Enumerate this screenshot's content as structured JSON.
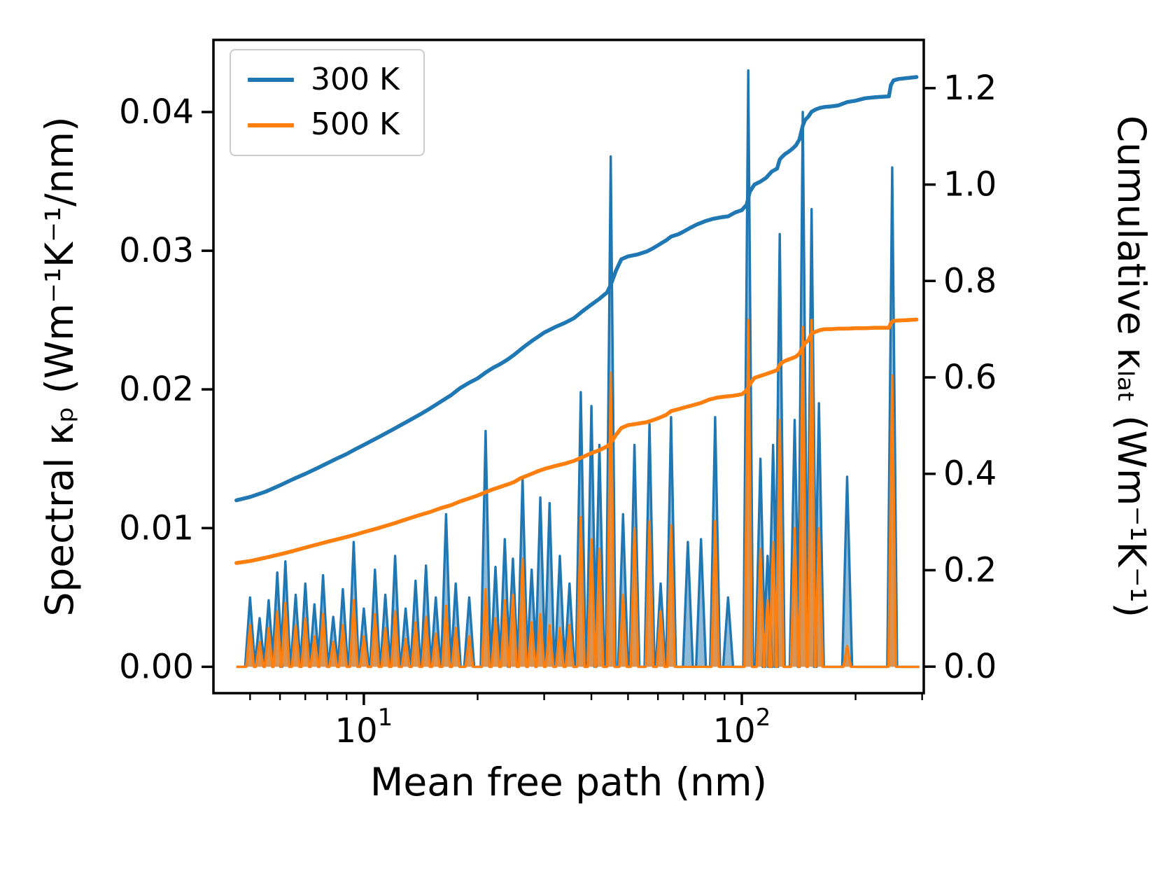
{
  "legend": {
    "items": [
      {
        "label": "300 K",
        "color": "#1f77b4"
      },
      {
        "label": "500 K",
        "color": "#ff7f0e"
      }
    ]
  },
  "chart_data": {
    "type": "area+line",
    "title": "",
    "xlabel": "Mean free path (nm)",
    "x_axis": {
      "scale": "log",
      "xlim": [
        4.0,
        303
      ],
      "major_ticks": [
        {
          "value": 10,
          "base": "10",
          "exp": "1"
        },
        {
          "value": 100,
          "base": "10",
          "exp": "2"
        }
      ],
      "minor_ticks": [
        5,
        6,
        7,
        8,
        9,
        20,
        30,
        40,
        50,
        60,
        70,
        80,
        90,
        200,
        300
      ]
    },
    "left_axis": {
      "label": "Spectral κₚ (Wm⁻¹K⁻¹/nm)",
      "ylim": [
        -0.0019,
        0.0452
      ],
      "ticks": [
        {
          "value": 0.0,
          "label": "0.00"
        },
        {
          "value": 0.01,
          "label": "0.01"
        },
        {
          "value": 0.02,
          "label": "0.02"
        },
        {
          "value": 0.03,
          "label": "0.03"
        },
        {
          "value": 0.04,
          "label": "0.04"
        }
      ]
    },
    "right_axis": {
      "label": "Cumulative κₗₐₜ (Wm⁻¹K⁻¹)",
      "ylim": [
        -0.055,
        1.3
      ],
      "ticks": [
        {
          "value": 0.0,
          "label": "0.0"
        },
        {
          "value": 0.2,
          "label": "0.2"
        },
        {
          "value": 0.4,
          "label": "0.4"
        },
        {
          "value": 0.6,
          "label": "0.6"
        },
        {
          "value": 0.8,
          "label": "0.8"
        },
        {
          "value": 1.0,
          "label": "1.0"
        },
        {
          "value": 1.2,
          "label": "1.2"
        }
      ]
    },
    "series_labels": [
      "300 K",
      "500 K"
    ],
    "colors": {
      "s300": "#1f77b4",
      "s500": "#ff7f0e"
    },
    "fill_alpha": {
      "s300": 0.5,
      "s500": 0.65
    },
    "spike_half_width_decades": {
      "s300": 0.013,
      "s500": 0.01
    },
    "spectral_peaks": {
      "columns": [
        "mfp_nm",
        "kp_300K",
        "kp_500K"
      ],
      "rows": [
        [
          5.0,
          0.005,
          0.003
        ],
        [
          5.3,
          0.0035,
          0.0018
        ],
        [
          5.6,
          0.0048,
          0.0028
        ],
        [
          5.9,
          0.0068,
          0.004
        ],
        [
          6.2,
          0.0076,
          0.0046
        ],
        [
          6.6,
          0.0052,
          0.003
        ],
        [
          7.0,
          0.006,
          0.0035
        ],
        [
          7.4,
          0.0045,
          0.0022
        ],
        [
          7.8,
          0.0066,
          0.0038
        ],
        [
          8.3,
          0.0036,
          0.0018
        ],
        [
          8.8,
          0.0056,
          0.003
        ],
        [
          9.4,
          0.009,
          0.0048
        ],
        [
          10.0,
          0.0042,
          0.0022
        ],
        [
          10.7,
          0.007,
          0.0038
        ],
        [
          11.4,
          0.0052,
          0.0028
        ],
        [
          12.1,
          0.008,
          0.004
        ],
        [
          12.9,
          0.0042,
          0.002
        ],
        [
          13.7,
          0.0062,
          0.0032
        ],
        [
          14.6,
          0.0073,
          0.0036
        ],
        [
          15.5,
          0.005,
          0.0024
        ],
        [
          16.5,
          0.011,
          0.0044
        ],
        [
          17.5,
          0.006,
          0.0028
        ],
        [
          19.0,
          0.005,
          0.0022
        ],
        [
          21.0,
          0.017,
          0.0056
        ],
        [
          22.3,
          0.0072,
          0.0035
        ],
        [
          23.6,
          0.0092,
          0.0048
        ],
        [
          24.8,
          0.0078,
          0.0052
        ],
        [
          26.3,
          0.0136,
          0.0078
        ],
        [
          27.8,
          0.007,
          0.0032
        ],
        [
          29.3,
          0.0122,
          0.0038
        ],
        [
          31.0,
          0.0118,
          0.003
        ],
        [
          33.0,
          0.008,
          0.0028
        ],
        [
          35.0,
          0.006,
          0.003
        ],
        [
          37.5,
          0.0198,
          0.0108
        ],
        [
          40.0,
          0.0188,
          0.0092
        ],
        [
          42.0,
          0.016,
          0.0085
        ],
        [
          45.0,
          0.0368,
          0.0212
        ],
        [
          48.5,
          0.011,
          0.0052
        ],
        [
          52.0,
          0.016,
          0.01
        ],
        [
          57.0,
          0.0175,
          0.0105
        ],
        [
          61.0,
          0.006,
          0.004
        ],
        [
          65.0,
          0.018,
          0.0102
        ],
        [
          72.0,
          0.009,
          0.0
        ],
        [
          78.0,
          0.0092,
          0.0
        ],
        [
          85.0,
          0.018,
          0.0105
        ],
        [
          92.0,
          0.005,
          0.0
        ],
        [
          104.0,
          0.043,
          0.025
        ],
        [
          112.0,
          0.015,
          0.0085
        ],
        [
          117.0,
          0.008,
          0.0048
        ],
        [
          121.0,
          0.016,
          0.009
        ],
        [
          126.0,
          0.0312,
          0.0178
        ],
        [
          138.0,
          0.0178,
          0.01
        ],
        [
          145.0,
          0.04,
          0.0245
        ],
        [
          153.0,
          0.033,
          0.025
        ],
        [
          160.0,
          0.019,
          0.01
        ],
        [
          190.0,
          0.0137,
          0.0015
        ],
        [
          250.0,
          0.036,
          0.021
        ]
      ]
    },
    "cumulative_300K": [
      [
        4.6,
        0.345
      ],
      [
        5.0,
        0.352
      ],
      [
        5.5,
        0.363
      ],
      [
        6.0,
        0.376
      ],
      [
        6.5,
        0.389
      ],
      [
        7.0,
        0.4
      ],
      [
        7.5,
        0.411
      ],
      [
        8.0,
        0.422
      ],
      [
        8.5,
        0.432
      ],
      [
        9.0,
        0.441
      ],
      [
        9.5,
        0.451
      ],
      [
        10.0,
        0.46
      ],
      [
        11.0,
        0.477
      ],
      [
        12.0,
        0.493
      ],
      [
        13.0,
        0.508
      ],
      [
        14.0,
        0.522
      ],
      [
        15.0,
        0.536
      ],
      [
        16.0,
        0.55
      ],
      [
        17.0,
        0.563
      ],
      [
        18.0,
        0.578
      ],
      [
        19.0,
        0.589
      ],
      [
        20.0,
        0.598
      ],
      [
        21.0,
        0.61
      ],
      [
        22.0,
        0.62
      ],
      [
        23.0,
        0.628
      ],
      [
        24.0,
        0.637
      ],
      [
        25.0,
        0.647
      ],
      [
        26.0,
        0.658
      ],
      [
        27.0,
        0.668
      ],
      [
        28.0,
        0.677
      ],
      [
        29.0,
        0.685
      ],
      [
        30.0,
        0.693
      ],
      [
        32.0,
        0.704
      ],
      [
        34.0,
        0.713
      ],
      [
        36.0,
        0.723
      ],
      [
        38.0,
        0.738
      ],
      [
        40.0,
        0.751
      ],
      [
        42.0,
        0.763
      ],
      [
        44.0,
        0.776
      ],
      [
        45.0,
        0.792
      ],
      [
        46.5,
        0.822
      ],
      [
        48.0,
        0.845
      ],
      [
        50.0,
        0.851
      ],
      [
        53.0,
        0.855
      ],
      [
        56.0,
        0.861
      ],
      [
        58.0,
        0.867
      ],
      [
        60.0,
        0.874
      ],
      [
        63.0,
        0.884
      ],
      [
        65.0,
        0.892
      ],
      [
        68.0,
        0.897
      ],
      [
        70.0,
        0.902
      ],
      [
        73.0,
        0.91
      ],
      [
        76.0,
        0.917
      ],
      [
        80.0,
        0.924
      ],
      [
        84.0,
        0.929
      ],
      [
        88.0,
        0.932
      ],
      [
        92.0,
        0.934
      ],
      [
        96.0,
        0.942
      ],
      [
        100.0,
        0.947
      ],
      [
        103.0,
        0.958
      ],
      [
        105.0,
        0.985
      ],
      [
        108.0,
        1.0
      ],
      [
        112.0,
        1.006
      ],
      [
        116.0,
        1.014
      ],
      [
        120.0,
        1.027
      ],
      [
        124.0,
        1.033
      ],
      [
        126.0,
        1.052
      ],
      [
        128.0,
        1.058
      ],
      [
        130.0,
        1.063
      ],
      [
        133.0,
        1.068
      ],
      [
        136.0,
        1.074
      ],
      [
        139.0,
        1.081
      ],
      [
        142.0,
        1.093
      ],
      [
        145.0,
        1.122
      ],
      [
        147.0,
        1.134
      ],
      [
        150.0,
        1.141
      ],
      [
        153.0,
        1.151
      ],
      [
        157.0,
        1.156
      ],
      [
        161.0,
        1.159
      ],
      [
        166.0,
        1.161
      ],
      [
        172.0,
        1.162
      ],
      [
        180.0,
        1.164
      ],
      [
        190.0,
        1.171
      ],
      [
        200.0,
        1.174
      ],
      [
        212.0,
        1.179
      ],
      [
        225.0,
        1.181
      ],
      [
        245.0,
        1.183
      ],
      [
        248.0,
        1.206
      ],
      [
        252.0,
        1.216
      ],
      [
        260.0,
        1.219
      ],
      [
        275.0,
        1.221
      ],
      [
        290.0,
        1.223
      ]
    ],
    "cumulative_500K": [
      [
        4.6,
        0.215
      ],
      [
        5.0,
        0.219
      ],
      [
        5.5,
        0.226
      ],
      [
        6.0,
        0.233
      ],
      [
        6.5,
        0.24
      ],
      [
        7.0,
        0.247
      ],
      [
        7.5,
        0.253
      ],
      [
        8.0,
        0.259
      ],
      [
        8.5,
        0.264
      ],
      [
        9.0,
        0.269
      ],
      [
        9.5,
        0.274
      ],
      [
        10.0,
        0.279
      ],
      [
        11.0,
        0.288
      ],
      [
        12.0,
        0.297
      ],
      [
        13.0,
        0.306
      ],
      [
        14.0,
        0.314
      ],
      [
        15.0,
        0.321
      ],
      [
        16.0,
        0.329
      ],
      [
        17.0,
        0.335
      ],
      [
        18.0,
        0.343
      ],
      [
        19.0,
        0.349
      ],
      [
        20.0,
        0.355
      ],
      [
        21.0,
        0.362
      ],
      [
        22.0,
        0.368
      ],
      [
        23.0,
        0.373
      ],
      [
        24.0,
        0.378
      ],
      [
        25.0,
        0.383
      ],
      [
        26.0,
        0.391
      ],
      [
        27.0,
        0.396
      ],
      [
        28.0,
        0.401
      ],
      [
        29.0,
        0.406
      ],
      [
        30.0,
        0.41
      ],
      [
        32.0,
        0.416
      ],
      [
        34.0,
        0.421
      ],
      [
        36.0,
        0.427
      ],
      [
        38.0,
        0.435
      ],
      [
        40.0,
        0.443
      ],
      [
        42.0,
        0.449
      ],
      [
        44.0,
        0.457
      ],
      [
        45.0,
        0.464
      ],
      [
        46.5,
        0.481
      ],
      [
        48.0,
        0.495
      ],
      [
        50.0,
        0.501
      ],
      [
        53.0,
        0.504
      ],
      [
        56.0,
        0.507
      ],
      [
        58.0,
        0.511
      ],
      [
        60.0,
        0.515
      ],
      [
        63.0,
        0.522
      ],
      [
        65.0,
        0.53
      ],
      [
        68.0,
        0.534
      ],
      [
        70.0,
        0.537
      ],
      [
        74.0,
        0.542
      ],
      [
        78.0,
        0.547
      ],
      [
        82.0,
        0.554
      ],
      [
        86.0,
        0.558
      ],
      [
        90.0,
        0.56
      ],
      [
        95.0,
        0.562
      ],
      [
        100.0,
        0.565
      ],
      [
        103.0,
        0.573
      ],
      [
        105.0,
        0.586
      ],
      [
        108.0,
        0.599
      ],
      [
        112.0,
        0.603
      ],
      [
        116.0,
        0.607
      ],
      [
        120.0,
        0.611
      ],
      [
        124.0,
        0.615
      ],
      [
        126.0,
        0.626
      ],
      [
        128.0,
        0.631
      ],
      [
        130.0,
        0.634
      ],
      [
        133.0,
        0.637
      ],
      [
        136.0,
        0.64
      ],
      [
        139.0,
        0.643
      ],
      [
        142.0,
        0.649
      ],
      [
        145.0,
        0.663
      ],
      [
        147.0,
        0.671
      ],
      [
        150.0,
        0.677
      ],
      [
        153.0,
        0.691
      ],
      [
        157.0,
        0.695
      ],
      [
        161.0,
        0.698
      ],
      [
        166.0,
        0.7
      ],
      [
        172.0,
        0.7
      ],
      [
        180.0,
        0.701
      ],
      [
        190.0,
        0.701
      ],
      [
        200.0,
        0.702
      ],
      [
        212.0,
        0.702
      ],
      [
        225.0,
        0.703
      ],
      [
        245.0,
        0.703
      ],
      [
        248.0,
        0.713
      ],
      [
        252.0,
        0.717
      ],
      [
        260.0,
        0.718
      ],
      [
        275.0,
        0.719
      ],
      [
        290.0,
        0.72
      ]
    ]
  }
}
